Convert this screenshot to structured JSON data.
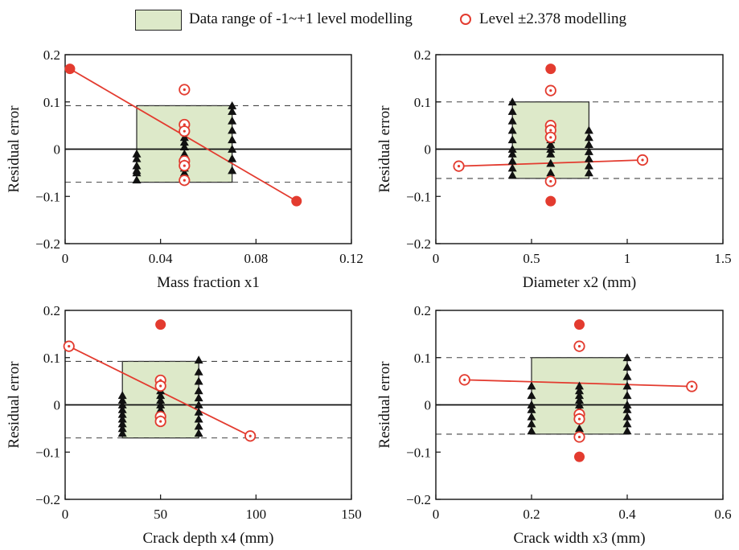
{
  "legend": {
    "box_label": "Data range of -1~+1 level modelling",
    "circle_label": "Level  ±2.378 modelling"
  },
  "colors": {
    "accent": "#e33b2f",
    "range_fill": "#dde9c9",
    "triangle": "#111111"
  },
  "chart_data": [
    {
      "type": "scatter",
      "xlabel": "Mass fraction  x1",
      "ylabel": "Residual error",
      "xlim": [
        0,
        0.12
      ],
      "ylim": [
        -0.2,
        0.2
      ],
      "xticks": [
        "0",
        "0.04",
        "0.08",
        "0.12"
      ],
      "yticks": [
        "−0.2",
        "−0.1",
        "0",
        "0.1",
        "0.2"
      ],
      "range_box": {
        "x": [
          0.03,
          0.07
        ],
        "y": [
          -0.07,
          0.092
        ]
      },
      "dashed_lines": [
        0.092,
        -0.07
      ],
      "fit_line": [
        [
          0.002,
          0.17
        ],
        [
          0.097,
          -0.11
        ]
      ],
      "triangles": [
        {
          "x": 0.03,
          "y": [
            -0.065,
            -0.05,
            -0.035,
            -0.02,
            -0.01,
            -0.045
          ]
        },
        {
          "x": 0.05,
          "y": [
            -0.05,
            -0.03,
            -0.01,
            0.005,
            0.015,
            0.025,
            -0.04
          ]
        },
        {
          "x": 0.07,
          "y": [
            -0.045,
            -0.02,
            0.0,
            0.02,
            0.04,
            0.06,
            0.08,
            0.092
          ]
        }
      ],
      "filled_circles": [
        [
          0.002,
          0.17
        ],
        [
          0.097,
          -0.11
        ]
      ],
      "open_circles": [
        [
          0.05,
          0.126
        ],
        [
          0.05,
          0.052
        ],
        [
          0.05,
          0.038
        ],
        [
          0.05,
          -0.025
        ],
        [
          0.05,
          -0.035
        ],
        [
          0.05,
          -0.066
        ]
      ]
    },
    {
      "type": "scatter",
      "xlabel": "Diameter  x2 (mm)",
      "ylabel": "Residual error",
      "xlim": [
        0,
        1.5
      ],
      "ylim": [
        -0.2,
        0.2
      ],
      "xticks": [
        "0",
        "0.5",
        "1",
        "1.5"
      ],
      "yticks": [
        "−0.2",
        "−0.1",
        "0",
        "0.1",
        "0.2"
      ],
      "range_box": {
        "x": [
          0.4,
          0.8
        ],
        "y": [
          -0.062,
          0.1
        ]
      },
      "dashed_lines": [
        0.1,
        -0.062
      ],
      "fit_line": [
        [
          0.12,
          -0.036
        ],
        [
          1.08,
          -0.023
        ]
      ],
      "triangles": [
        {
          "x": 0.4,
          "y": [
            -0.055,
            -0.04,
            -0.025,
            -0.01,
            0.0,
            0.02,
            0.04,
            0.06,
            0.08,
            0.1
          ]
        },
        {
          "x": 0.6,
          "y": [
            -0.05,
            -0.03,
            -0.01,
            0.0,
            0.01,
            0.02,
            0.03,
            0.04
          ]
        },
        {
          "x": 0.8,
          "y": [
            -0.05,
            -0.035,
            -0.02,
            -0.005,
            0.01,
            0.025,
            0.04
          ]
        }
      ],
      "filled_circles": [
        [
          0.6,
          0.17
        ],
        [
          0.6,
          -0.11
        ]
      ],
      "open_circles": [
        [
          0.12,
          -0.036
        ],
        [
          1.08,
          -0.023
        ],
        [
          0.6,
          0.124
        ],
        [
          0.6,
          0.05
        ],
        [
          0.6,
          0.04
        ],
        [
          0.6,
          0.025
        ],
        [
          0.6,
          -0.068
        ]
      ]
    },
    {
      "type": "scatter",
      "xlabel": "Crack depth  x4 (mm)",
      "ylabel": "Residual error",
      "xlim": [
        0,
        150
      ],
      "ylim": [
        -0.2,
        0.2
      ],
      "xticks": [
        "0",
        "50",
        "100",
        "150"
      ],
      "yticks": [
        "−0.2",
        "−0.1",
        "0",
        "0.1",
        "0.2"
      ],
      "range_box": {
        "x": [
          30,
          70
        ],
        "y": [
          -0.07,
          0.092
        ]
      },
      "dashed_lines": [
        0.092,
        -0.07
      ],
      "fit_line": [
        [
          2,
          0.124
        ],
        [
          97,
          -0.066
        ]
      ],
      "triangles": [
        {
          "x": 30,
          "y": [
            -0.06,
            -0.05,
            -0.04,
            -0.03,
            -0.02,
            -0.01,
            0.0,
            0.01,
            0.02
          ]
        },
        {
          "x": 50,
          "y": [
            -0.03,
            -0.01,
            0.0,
            0.01,
            0.02,
            0.03,
            0.04
          ]
        },
        {
          "x": 70,
          "y": [
            -0.06,
            -0.045,
            -0.03,
            -0.015,
            0.0,
            0.015,
            0.03,
            0.05,
            0.07,
            0.095
          ]
        }
      ],
      "filled_circles": [
        [
          50,
          0.17
        ]
      ],
      "open_circles": [
        [
          2,
          0.124
        ],
        [
          97,
          -0.066
        ],
        [
          50,
          0.052
        ],
        [
          50,
          0.04
        ],
        [
          50,
          -0.025
        ],
        [
          50,
          -0.035
        ]
      ]
    },
    {
      "type": "scatter",
      "xlabel": "Crack width  x3  (mm)",
      "ylabel": "Residual error",
      "xlim": [
        0,
        0.6
      ],
      "ylim": [
        -0.2,
        0.2
      ],
      "xticks": [
        "0",
        "0.2",
        "0.4",
        "0.6"
      ],
      "yticks": [
        "−0.2",
        "−0.1",
        "0",
        "0.1",
        "0.2"
      ],
      "range_box": {
        "x": [
          0.2,
          0.4
        ],
        "y": [
          -0.062,
          0.1
        ]
      },
      "dashed_lines": [
        0.1,
        -0.062
      ],
      "fit_line": [
        [
          0.06,
          0.053
        ],
        [
          0.535,
          0.039
        ]
      ],
      "triangles": [
        {
          "x": 0.2,
          "y": [
            -0.055,
            -0.04,
            -0.025,
            -0.01,
            0.0,
            0.02,
            0.04
          ]
        },
        {
          "x": 0.3,
          "y": [
            -0.05,
            -0.03,
            -0.01,
            0.0,
            0.01,
            0.02,
            0.03,
            0.04
          ]
        },
        {
          "x": 0.4,
          "y": [
            -0.055,
            -0.04,
            -0.025,
            -0.01,
            0.0,
            0.02,
            0.04,
            0.06,
            0.08,
            0.1
          ]
        }
      ],
      "filled_circles": [
        [
          0.3,
          0.17
        ],
        [
          0.3,
          -0.11
        ]
      ],
      "open_circles": [
        [
          0.06,
          0.053
        ],
        [
          0.535,
          0.039
        ],
        [
          0.3,
          0.124
        ],
        [
          0.3,
          -0.02
        ],
        [
          0.3,
          -0.03
        ],
        [
          0.3,
          -0.068
        ]
      ]
    }
  ]
}
